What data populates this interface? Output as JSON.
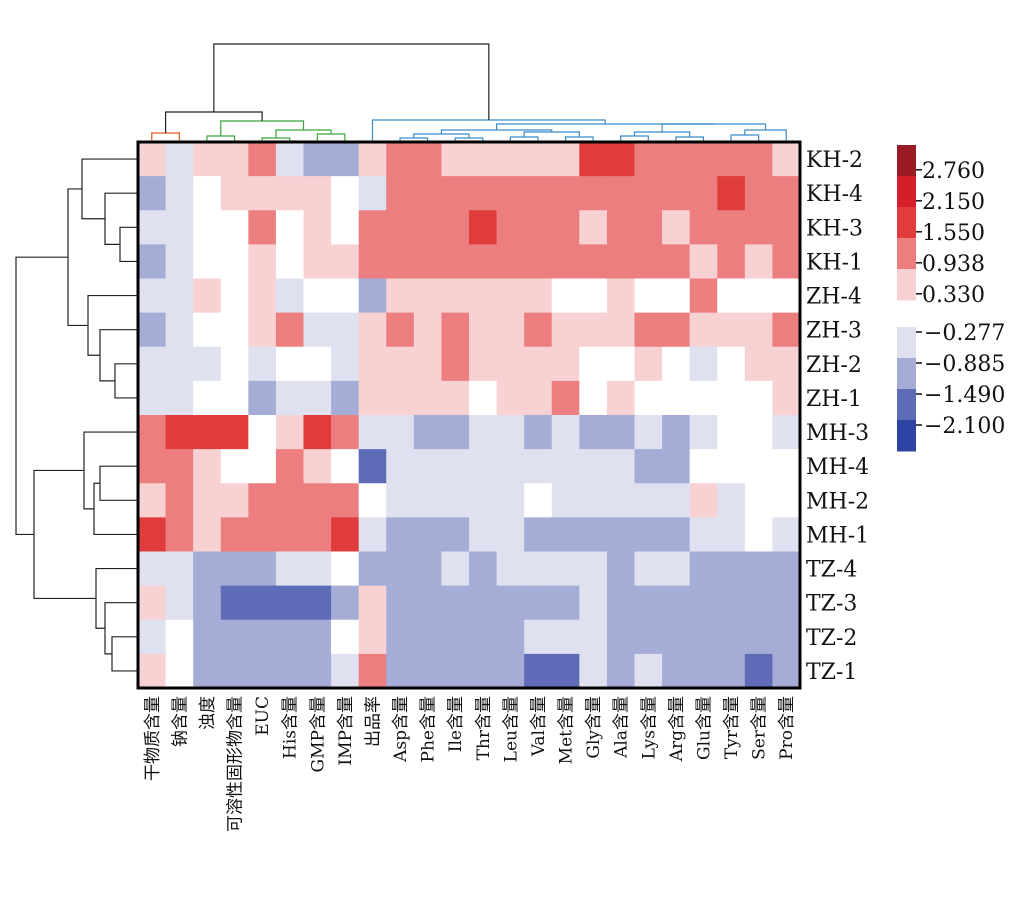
{
  "chart_data": {
    "type": "heatmap",
    "title": "",
    "rows": [
      "KH-2",
      "KH-4",
      "KH-3",
      "KH-1",
      "ZH-4",
      "ZH-3",
      "ZH-2",
      "ZH-1",
      "MH-3",
      "MH-4",
      "MH-2",
      "MH-1",
      "TZ-4",
      "TZ-3",
      "TZ-2",
      "TZ-1"
    ],
    "columns": [
      "干物质含量",
      "钠含量",
      "浊度",
      "可溶性固形物含量",
      "EUC",
      "His含量",
      "GMP含量",
      "IMP含量",
      "出品率",
      "Asp含量",
      "Phe含量",
      "Ile含量",
      "Thr含量",
      "Leu含量",
      "Val含量",
      "Met含量",
      "Gly含量",
      "Ala含量",
      "Lys含量",
      "Arg含量",
      "Glu含量",
      "Tyr含量",
      "Ser含量",
      "Pro含量"
    ],
    "values": [
      [
        0.33,
        -0.277,
        0.33,
        0.33,
        0.938,
        -0.277,
        -0.885,
        -0.885,
        0.33,
        0.938,
        0.938,
        0.33,
        0.33,
        0.33,
        0.33,
        0.33,
        1.55,
        1.55,
        0.938,
        0.938,
        0.938,
        0.938,
        0.938,
        0.33
      ],
      [
        -0.885,
        -0.277,
        0,
        0.33,
        0.33,
        0.33,
        0.33,
        0,
        -0.277,
        0.938,
        0.938,
        0.938,
        0.938,
        0.938,
        0.938,
        0.938,
        0.938,
        0.938,
        0.938,
        0.938,
        0.938,
        1.55,
        0.938,
        0.938
      ],
      [
        -0.277,
        -0.277,
        0,
        0,
        0.938,
        0,
        0.33,
        0,
        0.938,
        0.938,
        0.938,
        0.938,
        1.55,
        0.938,
        0.938,
        0.938,
        0.33,
        0.938,
        0.938,
        0.33,
        0.938,
        0.938,
        0.938,
        0.938
      ],
      [
        -0.885,
        -0.277,
        0,
        0,
        0.33,
        0,
        0.33,
        0.33,
        0.938,
        0.938,
        0.938,
        0.938,
        0.938,
        0.938,
        0.938,
        0.938,
        0.938,
        0.938,
        0.938,
        0.938,
        0.33,
        0.938,
        0.33,
        0.938
      ],
      [
        -0.277,
        -0.277,
        0.33,
        0,
        0.33,
        -0.277,
        0,
        0,
        -0.885,
        0.33,
        0.33,
        0.33,
        0.33,
        0.33,
        0.33,
        0,
        0,
        0.33,
        0,
        0,
        0.938,
        0,
        0,
        0
      ],
      [
        -0.885,
        -0.277,
        0,
        0,
        0.33,
        0.938,
        -0.277,
        -0.277,
        0.33,
        0.938,
        0.33,
        0.938,
        0.33,
        0.33,
        0.938,
        0.33,
        0.33,
        0.33,
        0.938,
        0.938,
        0.33,
        0.33,
        0.33,
        0.938
      ],
      [
        -0.277,
        -0.277,
        -0.277,
        0,
        -0.277,
        0,
        0,
        -0.277,
        0.33,
        0.33,
        0.33,
        0.938,
        0.33,
        0.33,
        0.33,
        0.33,
        0,
        0,
        0.33,
        0,
        -0.277,
        0,
        0.33,
        0.33
      ],
      [
        -0.277,
        -0.277,
        0,
        0,
        -0.885,
        -0.277,
        -0.277,
        -0.885,
        0.33,
        0.33,
        0.33,
        0.33,
        0,
        0.33,
        0.33,
        0.938,
        0,
        0.33,
        0,
        0,
        0,
        0,
        0,
        0.33
      ],
      [
        0.938,
        1.55,
        1.55,
        1.55,
        0,
        0.33,
        1.55,
        0.938,
        -0.277,
        -0.277,
        -0.885,
        -0.885,
        -0.277,
        -0.277,
        -0.885,
        -0.277,
        -0.885,
        -0.885,
        -0.277,
        -0.885,
        -0.277,
        0,
        0,
        -0.277
      ],
      [
        0.938,
        0.938,
        0.33,
        0,
        0,
        0.938,
        0.33,
        0,
        -1.49,
        -0.277,
        -0.277,
        -0.277,
        -0.277,
        -0.277,
        -0.277,
        -0.277,
        -0.277,
        -0.277,
        -0.885,
        -0.885,
        0,
        0,
        0,
        0
      ],
      [
        0.33,
        0.938,
        0.33,
        0.33,
        0.938,
        0.938,
        0.938,
        0.938,
        0,
        -0.277,
        -0.277,
        -0.277,
        -0.277,
        -0.277,
        0,
        -0.277,
        -0.277,
        -0.277,
        -0.277,
        -0.277,
        0.33,
        -0.277,
        0,
        0
      ],
      [
        1.55,
        0.938,
        0.33,
        0.938,
        0.938,
        0.938,
        0.938,
        1.55,
        -0.277,
        -0.885,
        -0.885,
        -0.885,
        -0.277,
        -0.277,
        -0.885,
        -0.885,
        -0.885,
        -0.885,
        -0.885,
        -0.885,
        -0.277,
        -0.277,
        0,
        -0.277
      ],
      [
        -0.277,
        -0.277,
        -0.885,
        -0.885,
        -0.885,
        -0.277,
        -0.277,
        0,
        -0.885,
        -0.885,
        -0.885,
        -0.277,
        -0.885,
        -0.277,
        -0.277,
        -0.277,
        -0.277,
        -0.885,
        -0.277,
        -0.277,
        -0.885,
        -0.885,
        -0.885,
        -0.885
      ],
      [
        0.33,
        -0.277,
        -0.885,
        -1.49,
        -1.49,
        -1.49,
        -1.49,
        -0.885,
        0.33,
        -0.885,
        -0.885,
        -0.885,
        -0.885,
        -0.885,
        -0.885,
        -0.885,
        -0.277,
        -0.885,
        -0.885,
        -0.885,
        -0.885,
        -0.885,
        -0.885,
        -0.885
      ],
      [
        -0.277,
        0,
        -0.885,
        -0.885,
        -0.885,
        -0.885,
        -0.885,
        0,
        0.33,
        -0.885,
        -0.885,
        -0.885,
        -0.885,
        -0.885,
        -0.277,
        -0.277,
        -0.277,
        -0.885,
        -0.885,
        -0.885,
        -0.885,
        -0.885,
        -0.885,
        -0.885
      ],
      [
        0.33,
        0,
        -0.885,
        -0.885,
        -0.885,
        -0.885,
        -0.885,
        -0.277,
        0.938,
        -0.885,
        -0.885,
        -0.885,
        -0.885,
        -0.885,
        -1.49,
        -1.49,
        -0.277,
        -0.885,
        -0.277,
        -0.885,
        -0.885,
        -0.885,
        -1.49,
        -0.885
      ]
    ],
    "legend": {
      "positive": [
        2.76,
        2.15,
        1.55,
        0.938,
        0.33
      ],
      "positive_labels": [
        "2.760",
        "2.150",
        "1.550",
        "0.938",
        "0.330"
      ],
      "negative": [
        -0.277,
        -0.885,
        -1.49,
        -2.1
      ],
      "negative_labels": [
        "−0.277",
        "−0.885",
        "−1.490",
        "−2.100"
      ],
      "placement": "right"
    },
    "colors": {
      "pos": [
        "#f8d2d3",
        "#ec7e80",
        "#e03c3c",
        "#d41f2a",
        "#9a1b23"
      ],
      "neg": [
        "#dfe1f0",
        "#a5acd6",
        "#5e6cb8",
        "#2f44a2"
      ],
      "zero": "#ffffff",
      "dendro_top": [
        "#e05a1e",
        "#3aa33a",
        "#3a8cc9",
        "#222222"
      ],
      "dendro_left": "#222222"
    }
  }
}
